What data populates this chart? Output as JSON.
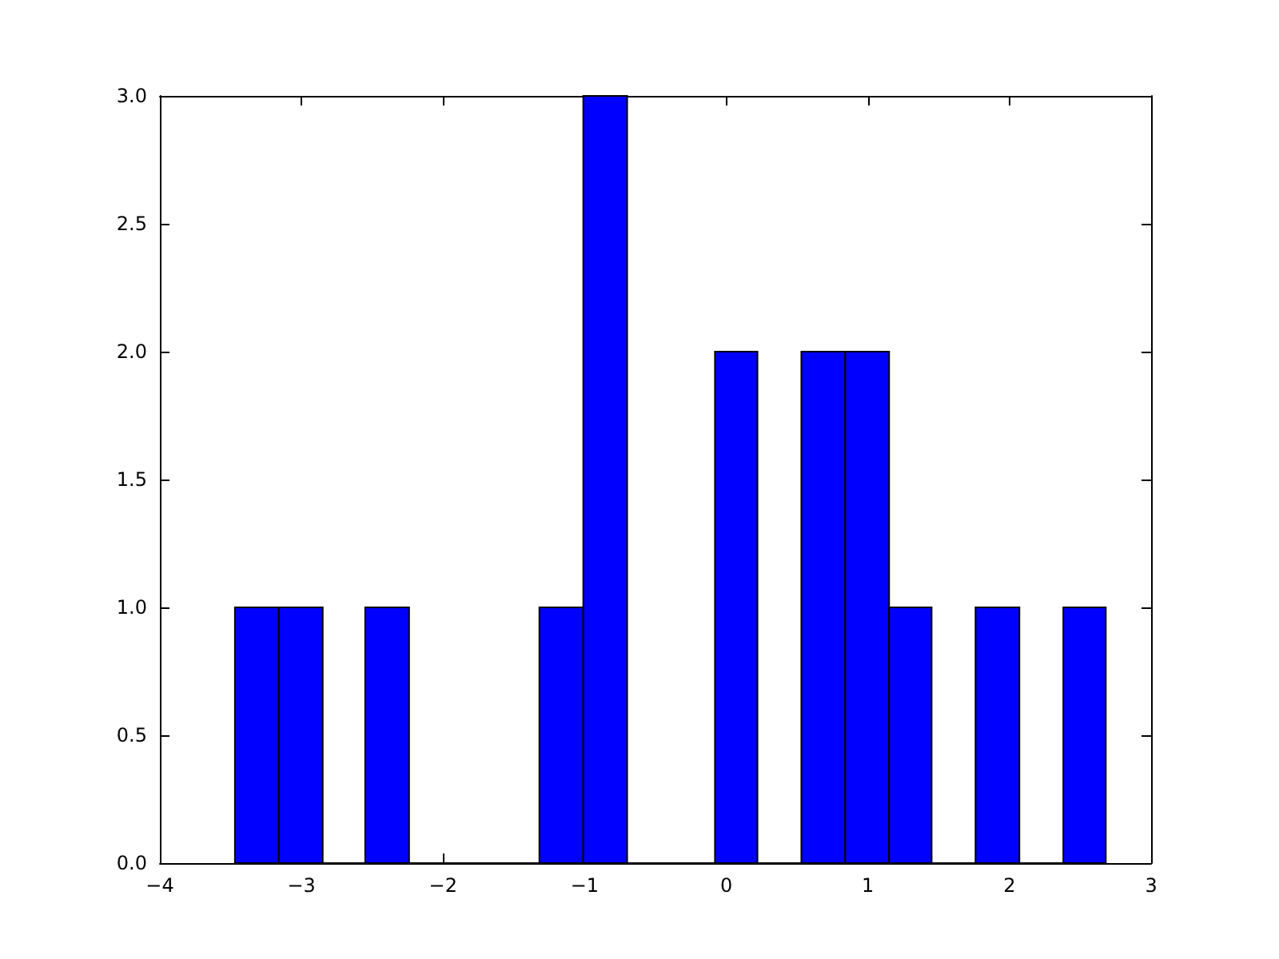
{
  "chart_data": {
    "type": "histogram",
    "bins": [
      -3.47,
      -3.16,
      -2.85,
      -2.55,
      -2.24,
      -1.32,
      -1.01,
      -0.7,
      -0.08,
      0.22,
      0.53,
      0.84,
      1.15,
      1.45,
      1.76,
      2.07,
      2.38,
      2.68
    ],
    "values": [
      1,
      1,
      0,
      1,
      0,
      1,
      3,
      0,
      2,
      0,
      2,
      2,
      1,
      0,
      1,
      0,
      1
    ],
    "color": "#0000ff",
    "xlim": [
      -4,
      3
    ],
    "xticks": [
      {
        "value": -4,
        "label": "−4"
      },
      {
        "value": -3,
        "label": "−3"
      },
      {
        "value": -2,
        "label": "−2"
      },
      {
        "value": -1,
        "label": "−1"
      },
      0,
      1,
      2,
      3
    ],
    "ylim": [
      0,
      3
    ],
    "yticks": [
      {
        "value": 0,
        "label": "0.0"
      },
      {
        "value": 0.5,
        "label": "0.5"
      },
      {
        "value": 1,
        "label": "1.0"
      },
      {
        "value": 1.5,
        "label": "1.5"
      },
      {
        "value": 2,
        "label": "2.0"
      },
      {
        "value": 2.5,
        "label": "2.5"
      },
      {
        "value": 3,
        "label": "3.0"
      }
    ],
    "grid": false
  }
}
